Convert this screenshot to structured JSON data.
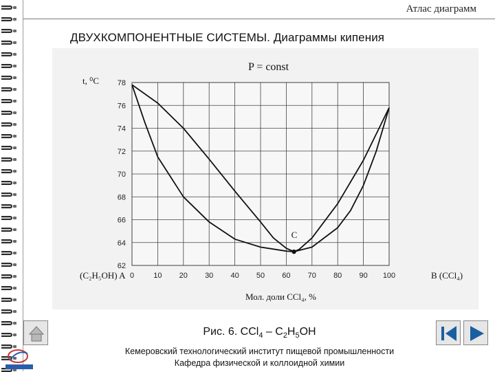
{
  "header": {
    "title": "Атлас диаграмм"
  },
  "slide": {
    "title": "ДВУХКОМПОНЕНТНЫЕ СИСТЕМЫ.  Диаграммы кипения",
    "caption": {
      "prefix": "Рис. 6. CCl",
      "s1": "4",
      "mid": " – C",
      "s2": "2",
      "h": "H",
      "s3": "5",
      "suffix": "OH"
    }
  },
  "footer": {
    "line1": "Кемеровский технологический институт пищевой промышленности",
    "line2": "Кафедра физической и коллоидной химии"
  },
  "icons": {
    "home": "home-icon",
    "back": "back-icon",
    "forward": "forward-icon",
    "logo": "institute-logo"
  },
  "colors": {
    "background": "#ffffff",
    "panel": "#f2f2f2",
    "curve": "#111111",
    "grid": "#444444",
    "nav_triangle": "#1a5fa0"
  },
  "chart_data": {
    "type": "line",
    "title": "P = const",
    "ylabel": "t, ⁰C",
    "xlabel": "Мол. доли CCl₄, %",
    "left_component": "(C₂H₅OH) A",
    "right_component": "B (CCl₄)",
    "point_label": "C",
    "xlim": [
      0,
      100
    ],
    "ylim": [
      62,
      78
    ],
    "x_ticks": [
      "0",
      "10",
      "20",
      "30",
      "40",
      "50",
      "60",
      "70",
      "80",
      "90",
      "100"
    ],
    "y_ticks": [
      "62",
      "64",
      "66",
      "68",
      "70",
      "72",
      "74",
      "76",
      "78"
    ],
    "grid": true,
    "series": [
      {
        "role": "upper",
        "x": [
          0,
          10,
          20,
          30,
          40,
          50,
          55,
          60,
          63,
          65,
          70,
          80,
          90,
          100
        ],
        "y": [
          77.8,
          76.2,
          74.0,
          71.3,
          68.5,
          65.8,
          64.4,
          63.5,
          63.2,
          63.4,
          64.4,
          67.4,
          71.2,
          75.8
        ]
      },
      {
        "role": "lower",
        "x": [
          0,
          5,
          10,
          20,
          30,
          40,
          50,
          60,
          63,
          70,
          80,
          85,
          90,
          95,
          100
        ],
        "y": [
          77.8,
          74.5,
          71.5,
          68.0,
          65.8,
          64.3,
          63.6,
          63.25,
          63.2,
          63.6,
          65.3,
          66.8,
          69.0,
          72.0,
          75.8
        ]
      }
    ],
    "azeotrope": {
      "x": 63,
      "y": 63.2
    }
  }
}
